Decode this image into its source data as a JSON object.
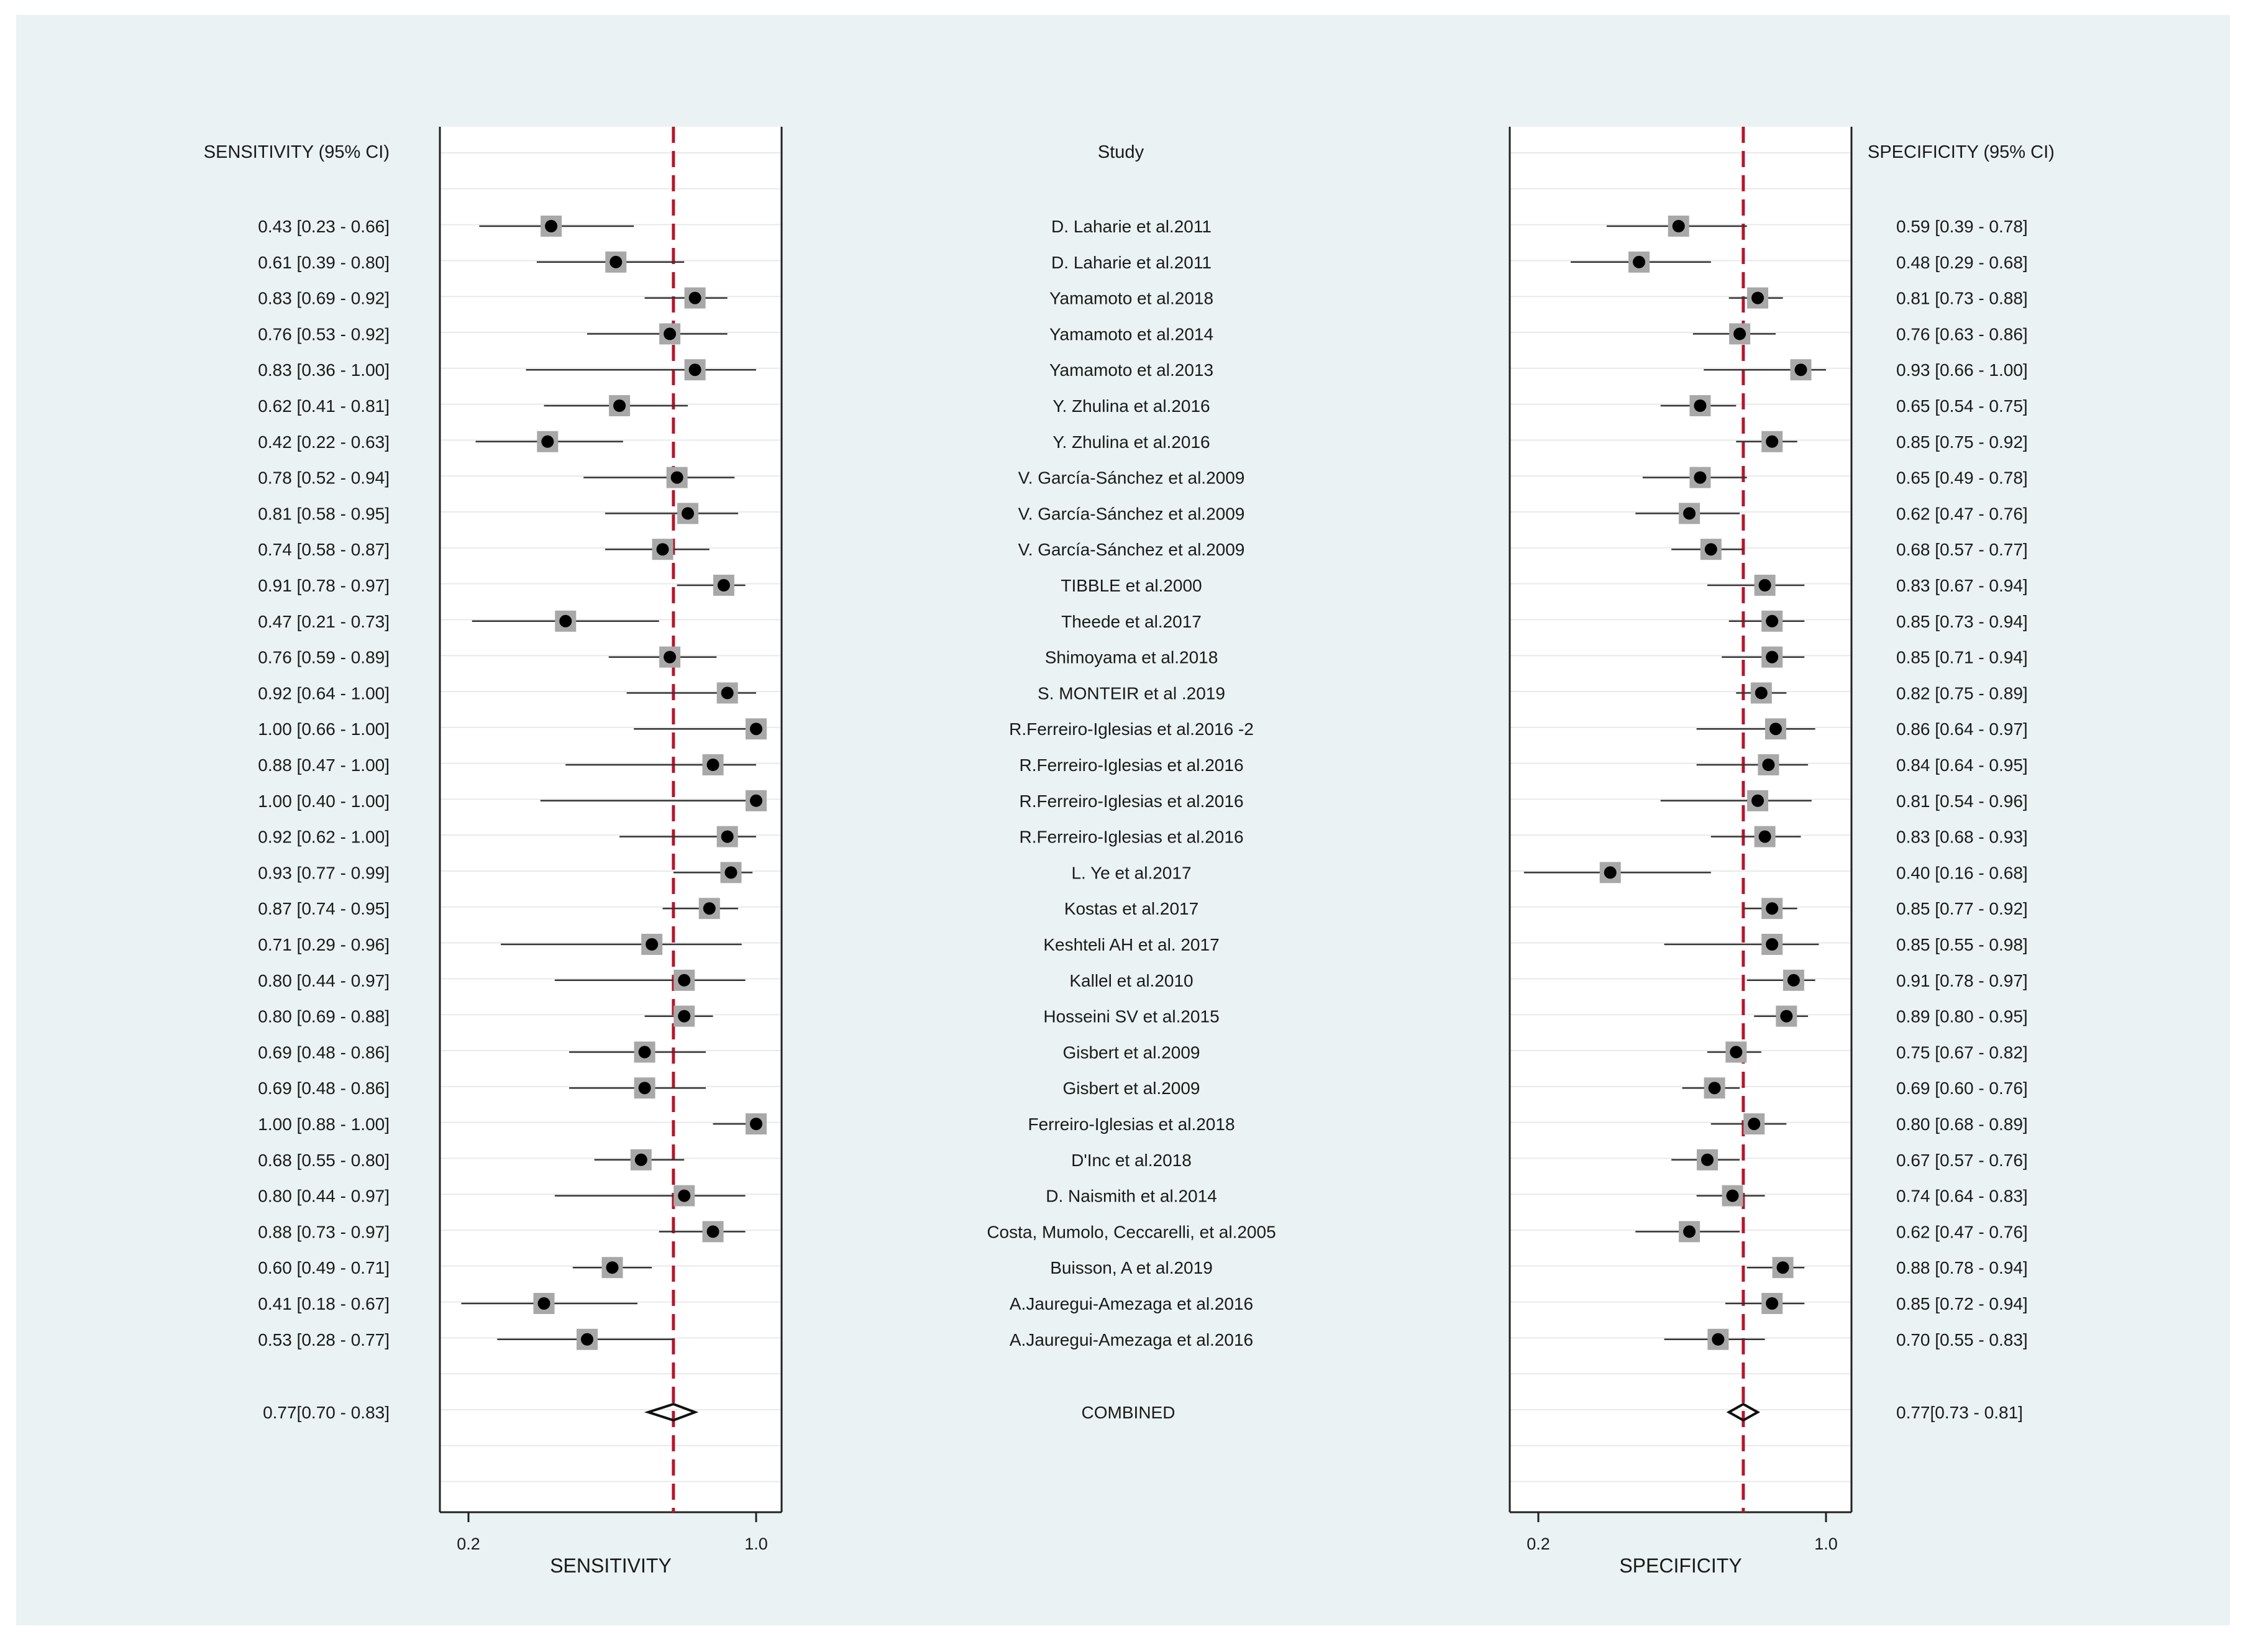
{
  "sens_header": "SENSITIVITY (95% CI)",
  "study_header": "Study",
  "spec_header": "SPECIFICITY (95% CI)",
  "combined_label": "COMBINED",
  "sens_axis_label": "SENSITIVITY",
  "spec_axis_label": "SPECIFICITY",
  "colors": {
    "ref_line": "#b5172b",
    "box": "#a8a8a8",
    "point": "#000000",
    "background": "#eaf2f3"
  },
  "chart_data": {
    "type": "forest",
    "xlim": [
      0.2,
      1.0
    ],
    "xticks": [
      "0.2",
      "1.0"
    ],
    "studies": [
      {
        "study": "D. Laharie et al.2011",
        "sens": 0.43,
        "sens_lo": 0.23,
        "sens_hi": 0.66,
        "sens_text": "0.43 [0.23 - 0.66]",
        "spec": 0.59,
        "spec_lo": 0.39,
        "spec_hi": 0.78,
        "spec_text": "0.59 [0.39 - 0.78]"
      },
      {
        "study": "D. Laharie et al.2011",
        "sens": 0.61,
        "sens_lo": 0.39,
        "sens_hi": 0.8,
        "sens_text": "0.61 [0.39 - 0.80]",
        "spec": 0.48,
        "spec_lo": 0.29,
        "spec_hi": 0.68,
        "spec_text": "0.48 [0.29 - 0.68]"
      },
      {
        "study": "Yamamoto et al.2018",
        "sens": 0.83,
        "sens_lo": 0.69,
        "sens_hi": 0.92,
        "sens_text": "0.83 [0.69 - 0.92]",
        "spec": 0.81,
        "spec_lo": 0.73,
        "spec_hi": 0.88,
        "spec_text": "0.81 [0.73 - 0.88]"
      },
      {
        "study": "Yamamoto et al.2014",
        "sens": 0.76,
        "sens_lo": 0.53,
        "sens_hi": 0.92,
        "sens_text": "0.76 [0.53 - 0.92]",
        "spec": 0.76,
        "spec_lo": 0.63,
        "spec_hi": 0.86,
        "spec_text": "0.76 [0.63 - 0.86]"
      },
      {
        "study": "Yamamoto et al.2013",
        "sens": 0.83,
        "sens_lo": 0.36,
        "sens_hi": 1.0,
        "sens_text": "0.83 [0.36 - 1.00]",
        "spec": 0.93,
        "spec_lo": 0.66,
        "spec_hi": 1.0,
        "spec_text": "0.93 [0.66 - 1.00]"
      },
      {
        "study": "Y. Zhulina et al.2016",
        "sens": 0.62,
        "sens_lo": 0.41,
        "sens_hi": 0.81,
        "sens_text": "0.62 [0.41 - 0.81]",
        "spec": 0.65,
        "spec_lo": 0.54,
        "spec_hi": 0.75,
        "spec_text": "0.65 [0.54 - 0.75]"
      },
      {
        "study": "Y. Zhulina et al.2016",
        "sens": 0.42,
        "sens_lo": 0.22,
        "sens_hi": 0.63,
        "sens_text": "0.42 [0.22 - 0.63]",
        "spec": 0.85,
        "spec_lo": 0.75,
        "spec_hi": 0.92,
        "spec_text": "0.85 [0.75 - 0.92]"
      },
      {
        "study": "V. García-Sánchez et al.2009",
        "sens": 0.78,
        "sens_lo": 0.52,
        "sens_hi": 0.94,
        "sens_text": "0.78 [0.52 - 0.94]",
        "spec": 0.65,
        "spec_lo": 0.49,
        "spec_hi": 0.78,
        "spec_text": "0.65 [0.49 - 0.78]"
      },
      {
        "study": "V. García-Sánchez et al.2009",
        "sens": 0.81,
        "sens_lo": 0.58,
        "sens_hi": 0.95,
        "sens_text": "0.81 [0.58 - 0.95]",
        "spec": 0.62,
        "spec_lo": 0.47,
        "spec_hi": 0.76,
        "spec_text": "0.62 [0.47 - 0.76]"
      },
      {
        "study": "V. García-Sánchez et al.2009",
        "sens": 0.74,
        "sens_lo": 0.58,
        "sens_hi": 0.87,
        "sens_text": "0.74 [0.58 - 0.87]",
        "spec": 0.68,
        "spec_lo": 0.57,
        "spec_hi": 0.77,
        "spec_text": "0.68 [0.57 - 0.77]"
      },
      {
        "study": "TIBBLE et al.2000",
        "sens": 0.91,
        "sens_lo": 0.78,
        "sens_hi": 0.97,
        "sens_text": "0.91 [0.78 - 0.97]",
        "spec": 0.83,
        "spec_lo": 0.67,
        "spec_hi": 0.94,
        "spec_text": "0.83 [0.67 - 0.94]"
      },
      {
        "study": "Theede et al.2017",
        "sens": 0.47,
        "sens_lo": 0.21,
        "sens_hi": 0.73,
        "sens_text": "0.47 [0.21 - 0.73]",
        "spec": 0.85,
        "spec_lo": 0.73,
        "spec_hi": 0.94,
        "spec_text": "0.85 [0.73 - 0.94]"
      },
      {
        "study": "Shimoyama et al.2018",
        "sens": 0.76,
        "sens_lo": 0.59,
        "sens_hi": 0.89,
        "sens_text": "0.76 [0.59 - 0.89]",
        "spec": 0.85,
        "spec_lo": 0.71,
        "spec_hi": 0.94,
        "spec_text": "0.85 [0.71 - 0.94]"
      },
      {
        "study": "S. MONTEIR et al .2019",
        "sens": 0.92,
        "sens_lo": 0.64,
        "sens_hi": 1.0,
        "sens_text": "0.92 [0.64 - 1.00]",
        "spec": 0.82,
        "spec_lo": 0.75,
        "spec_hi": 0.89,
        "spec_text": "0.82 [0.75 - 0.89]"
      },
      {
        "study": "R.Ferreiro-Iglesias et al.2016 -2",
        "sens": 1.0,
        "sens_lo": 0.66,
        "sens_hi": 1.0,
        "sens_text": "1.00 [0.66 - 1.00]",
        "spec": 0.86,
        "spec_lo": 0.64,
        "spec_hi": 0.97,
        "spec_text": "0.86 [0.64 - 0.97]"
      },
      {
        "study": "R.Ferreiro-Iglesias et al.2016",
        "sens": 0.88,
        "sens_lo": 0.47,
        "sens_hi": 1.0,
        "sens_text": "0.88 [0.47 - 1.00]",
        "spec": 0.84,
        "spec_lo": 0.64,
        "spec_hi": 0.95,
        "spec_text": "0.84 [0.64 - 0.95]"
      },
      {
        "study": "R.Ferreiro-Iglesias et al.2016",
        "sens": 1.0,
        "sens_lo": 0.4,
        "sens_hi": 1.0,
        "sens_text": "1.00 [0.40 - 1.00]",
        "spec": 0.81,
        "spec_lo": 0.54,
        "spec_hi": 0.96,
        "spec_text": "0.81 [0.54 - 0.96]"
      },
      {
        "study": "R.Ferreiro-Iglesias et al.2016",
        "sens": 0.92,
        "sens_lo": 0.62,
        "sens_hi": 1.0,
        "sens_text": "0.92 [0.62 - 1.00]",
        "spec": 0.83,
        "spec_lo": 0.68,
        "spec_hi": 0.93,
        "spec_text": "0.83 [0.68 - 0.93]"
      },
      {
        "study": "L. Ye et al.2017",
        "sens": 0.93,
        "sens_lo": 0.77,
        "sens_hi": 0.99,
        "sens_text": "0.93 [0.77 - 0.99]",
        "spec": 0.4,
        "spec_lo": 0.16,
        "spec_hi": 0.68,
        "spec_text": "0.40 [0.16 - 0.68]"
      },
      {
        "study": "Kostas et al.2017",
        "sens": 0.87,
        "sens_lo": 0.74,
        "sens_hi": 0.95,
        "sens_text": "0.87 [0.74 - 0.95]",
        "spec": 0.85,
        "spec_lo": 0.77,
        "spec_hi": 0.92,
        "spec_text": "0.85 [0.77 - 0.92]"
      },
      {
        "study": "Keshteli AH et al. 2017",
        "sens": 0.71,
        "sens_lo": 0.29,
        "sens_hi": 0.96,
        "sens_text": "0.71 [0.29 - 0.96]",
        "spec": 0.85,
        "spec_lo": 0.55,
        "spec_hi": 0.98,
        "spec_text": "0.85 [0.55 - 0.98]"
      },
      {
        "study": "Kallel et al.2010",
        "sens": 0.8,
        "sens_lo": 0.44,
        "sens_hi": 0.97,
        "sens_text": "0.80 [0.44 - 0.97]",
        "spec": 0.91,
        "spec_lo": 0.78,
        "spec_hi": 0.97,
        "spec_text": "0.91 [0.78 - 0.97]"
      },
      {
        "study": "Hosseini SV et al.2015",
        "sens": 0.8,
        "sens_lo": 0.69,
        "sens_hi": 0.88,
        "sens_text": "0.80 [0.69 - 0.88]",
        "spec": 0.89,
        "spec_lo": 0.8,
        "spec_hi": 0.95,
        "spec_text": "0.89 [0.80 - 0.95]"
      },
      {
        "study": "Gisbert et al.2009",
        "sens": 0.69,
        "sens_lo": 0.48,
        "sens_hi": 0.86,
        "sens_text": "0.69 [0.48 - 0.86]",
        "spec": 0.75,
        "spec_lo": 0.67,
        "spec_hi": 0.82,
        "spec_text": "0.75 [0.67 - 0.82]"
      },
      {
        "study": "Gisbert et al.2009",
        "sens": 0.69,
        "sens_lo": 0.48,
        "sens_hi": 0.86,
        "sens_text": "0.69 [0.48 - 0.86]",
        "spec": 0.69,
        "spec_lo": 0.6,
        "spec_hi": 0.76,
        "spec_text": "0.69 [0.60 - 0.76]"
      },
      {
        "study": "Ferreiro-Iglesias et al.2018",
        "sens": 1.0,
        "sens_lo": 0.88,
        "sens_hi": 1.0,
        "sens_text": "1.00 [0.88 - 1.00]",
        "spec": 0.8,
        "spec_lo": 0.68,
        "spec_hi": 0.89,
        "spec_text": "0.80 [0.68 - 0.89]"
      },
      {
        "study": "D'Inc et al.2018",
        "sens": 0.68,
        "sens_lo": 0.55,
        "sens_hi": 0.8,
        "sens_text": "0.68 [0.55 - 0.80]",
        "spec": 0.67,
        "spec_lo": 0.57,
        "spec_hi": 0.76,
        "spec_text": "0.67 [0.57 - 0.76]"
      },
      {
        "study": "D. Naismith et al.2014",
        "sens": 0.8,
        "sens_lo": 0.44,
        "sens_hi": 0.97,
        "sens_text": "0.80 [0.44 - 0.97]",
        "spec": 0.74,
        "spec_lo": 0.64,
        "spec_hi": 0.83,
        "spec_text": "0.74 [0.64 - 0.83]"
      },
      {
        "study": "Costa, Mumolo, Ceccarelli, et al.2005",
        "sens": 0.88,
        "sens_lo": 0.73,
        "sens_hi": 0.97,
        "sens_text": "0.88 [0.73 - 0.97]",
        "spec": 0.62,
        "spec_lo": 0.47,
        "spec_hi": 0.76,
        "spec_text": "0.62 [0.47 - 0.76]"
      },
      {
        "study": "Buisson, A et al.2019",
        "sens": 0.6,
        "sens_lo": 0.49,
        "sens_hi": 0.71,
        "sens_text": "0.60 [0.49 - 0.71]",
        "spec": 0.88,
        "spec_lo": 0.78,
        "spec_hi": 0.94,
        "spec_text": "0.88 [0.78 - 0.94]"
      },
      {
        "study": "A.Jauregui-Amezaga et al.2016",
        "sens": 0.41,
        "sens_lo": 0.18,
        "sens_hi": 0.67,
        "sens_text": "0.41 [0.18 - 0.67]",
        "spec": 0.85,
        "spec_lo": 0.72,
        "spec_hi": 0.94,
        "spec_text": "0.85 [0.72 - 0.94]"
      },
      {
        "study": "A.Jauregui-Amezaga et al.2016",
        "sens": 0.53,
        "sens_lo": 0.28,
        "sens_hi": 0.77,
        "sens_text": "0.53 [0.28 - 0.77]",
        "spec": 0.7,
        "spec_lo": 0.55,
        "spec_hi": 0.83,
        "spec_text": "0.70 [0.55 - 0.83]"
      }
    ],
    "combined": {
      "sens": 0.77,
      "sens_lo": 0.7,
      "sens_hi": 0.83,
      "sens_text": "0.77[0.70 - 0.83]",
      "spec": 0.77,
      "spec_lo": 0.73,
      "spec_hi": 0.81,
      "spec_text": "0.77[0.73 - 0.81]"
    }
  }
}
